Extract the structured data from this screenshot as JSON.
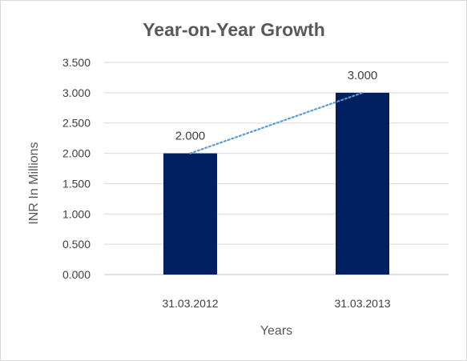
{
  "chart_data": {
    "type": "bar",
    "title": "Year-on-Year Growth",
    "xlabel": "Years",
    "ylabel": "INR In Millions",
    "categories": [
      "31.03.2012",
      "31.03.2013"
    ],
    "series": [
      {
        "values": [
          2.0,
          3.0
        ],
        "value_labels": [
          "2.000",
          "3.000"
        ],
        "color": "#002060"
      }
    ],
    "trendline": {
      "style": "dotted",
      "color": "#5b9bd5",
      "type": "linear"
    },
    "ylim": [
      0,
      3.5
    ],
    "yticks": [
      0,
      0.5,
      1.0,
      1.5,
      2.0,
      2.5,
      3.0,
      3.5
    ],
    "ytick_labels": [
      "0.000",
      "0.500",
      "1.000",
      "1.500",
      "2.000",
      "2.500",
      "3.000",
      "3.500"
    ],
    "grid": true,
    "legend": "none"
  }
}
